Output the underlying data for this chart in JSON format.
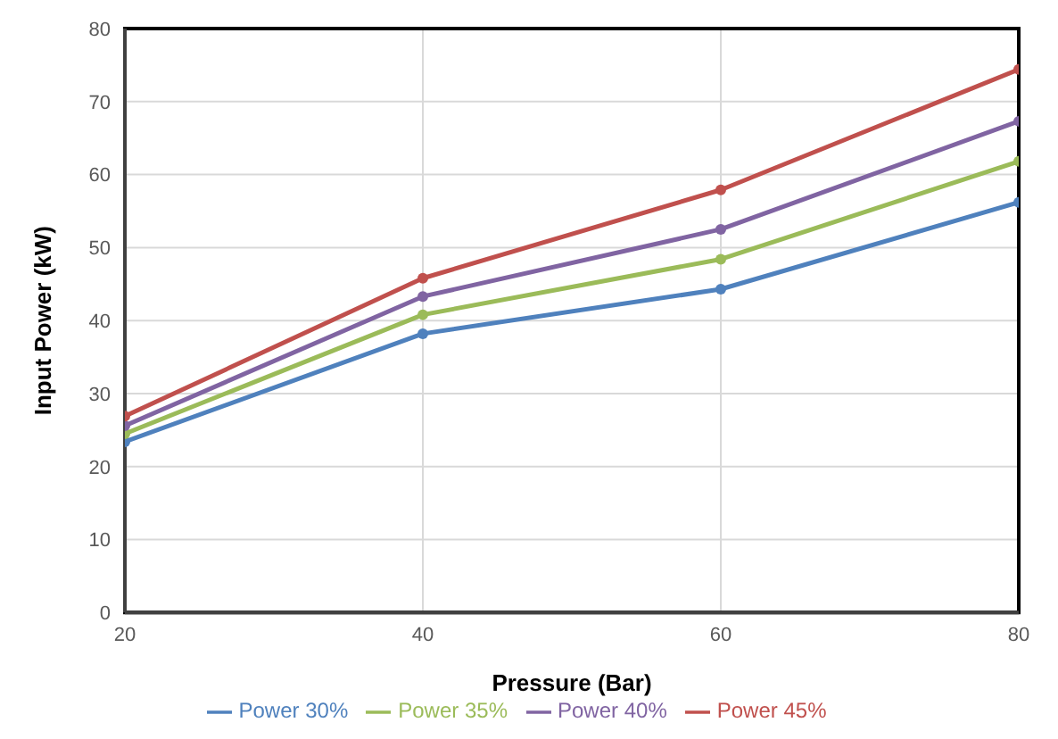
{
  "chart_data": {
    "type": "line",
    "xlabel": "Pressure (Bar)",
    "ylabel": "Input Power (kW)",
    "x": [
      20,
      40,
      60,
      80
    ],
    "series": [
      {
        "name": "Power 30%",
        "color": "#4f81bd",
        "values": [
          23.4,
          38.2,
          44.3,
          56.2
        ]
      },
      {
        "name": "Power 35%",
        "color": "#9bbb59",
        "values": [
          24.5,
          40.8,
          48.4,
          61.8
        ]
      },
      {
        "name": "Power 40%",
        "color": "#8064a2",
        "values": [
          25.6,
          43.3,
          52.5,
          67.3
        ]
      },
      {
        "name": "Power 45%",
        "color": "#c0504d",
        "values": [
          26.9,
          45.8,
          57.9,
          74.4
        ]
      }
    ],
    "xlim": [
      20,
      80
    ],
    "xticks": [
      20,
      40,
      60,
      80
    ],
    "ylim": [
      0,
      80
    ],
    "yticks": [
      0,
      10,
      20,
      30,
      40,
      50,
      60,
      70,
      80
    ],
    "grid": true,
    "legend": "bottom",
    "marker": "circle",
    "line_style": "solid"
  }
}
